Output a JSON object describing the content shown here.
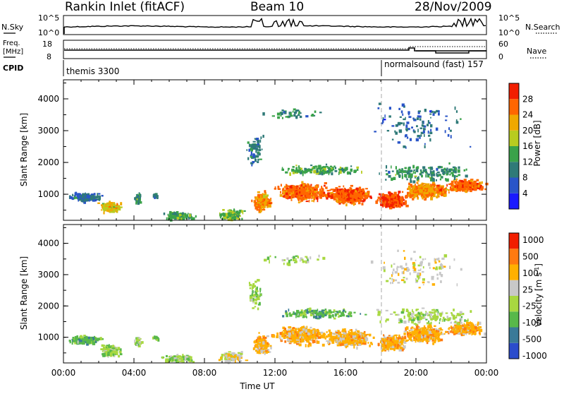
{
  "header": {
    "station": "Rankin Inlet (fitACF)",
    "beam": "Beam 10",
    "date": "28/Nov/2009"
  },
  "strip_panels": {
    "nsky": {
      "label": "N.Sky",
      "tick_top": "10^5",
      "tick_bottom": "10^0",
      "right_label": "N.Search",
      "right_tick_top": "10^5",
      "right_tick_bottom": "10^0"
    },
    "freq": {
      "label_line1": "Freq.",
      "label_line2": "[MHz]",
      "tick_top": "18",
      "tick_bottom": "8",
      "right_label": "Nave",
      "right_tick_top": "60",
      "right_tick_bottom": "0"
    },
    "cpid": {
      "label": "CPID",
      "programs": [
        {
          "name": "themis 3300",
          "start_hour": 0
        },
        {
          "name": "normalsound (fast) 157",
          "start_hour": 18
        }
      ]
    }
  },
  "chart_data": [
    {
      "type": "heatmap",
      "name": "power-panel",
      "quantity": "Power",
      "ylabel": "Slant Range [km]",
      "xlabel": "",
      "xlim_hours": [
        0,
        24
      ],
      "ylim_km": [
        180,
        4600
      ],
      "yticks": [
        1000,
        2000,
        3000,
        4000
      ],
      "colorbar": {
        "label": "Power [dB]",
        "ticks": [
          "28",
          "24",
          "20",
          "16",
          "12",
          "8",
          "4"
        ],
        "tick_values": [
          28,
          24,
          20,
          16,
          12,
          8,
          4
        ],
        "range": [
          0,
          32
        ],
        "colors": [
          "#1a1aff",
          "#2a55c8",
          "#2f7a78",
          "#3aa24a",
          "#b8cc20",
          "#f0a800",
          "#ff6600",
          "#f21e00"
        ]
      }
    },
    {
      "type": "heatmap",
      "name": "velocity-panel",
      "quantity": "Velocity",
      "ylabel": "Slant Range [km]",
      "xlabel": "Time UT",
      "xlim_hours": [
        0,
        24
      ],
      "ylim_km": [
        180,
        4600
      ],
      "yticks": [
        1000,
        2000,
        3000,
        4000
      ],
      "xticks": [
        "00:00",
        "04:00",
        "08:00",
        "12:00",
        "16:00",
        "20:00",
        "00:00"
      ],
      "colorbar": {
        "label": "Velocity [m s",
        "label_superscript": "-1",
        "label_close": "]",
        "ticks": [
          "1000",
          "500",
          "100",
          "25",
          "-25",
          "-100",
          "-500",
          "-1000"
        ],
        "colors": [
          "#2b4ccc",
          "#3a7a98",
          "#58b84a",
          "#a8d840",
          "#c8c8c8",
          "#ffb000",
          "#ff7a10",
          "#f21e00"
        ]
      }
    }
  ]
}
